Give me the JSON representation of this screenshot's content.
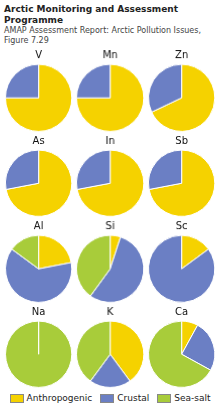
{
  "chart_data": {
    "type": "pie",
    "title": "Arctic Monitoring and Assessment Programme",
    "subtitle": "AMAP Assessment Report: Arctic Pollution Issues, Figure 7.29",
    "categories": [
      "Anthropogenic",
      "Crustal",
      "Sea-salt"
    ],
    "colors": [
      "#F5D200",
      "#6B7FC4",
      "#A8CC3A"
    ],
    "legend": "bottom",
    "series": [
      {
        "name": "V",
        "values": [
          75,
          25,
          0
        ]
      },
      {
        "name": "Mn",
        "values": [
          75,
          25,
          0
        ]
      },
      {
        "name": "Zn",
        "values": [
          68,
          32,
          0
        ]
      },
      {
        "name": "As",
        "values": [
          72,
          28,
          0
        ]
      },
      {
        "name": "In",
        "values": [
          72,
          28,
          0
        ]
      },
      {
        "name": "Sb",
        "values": [
          72,
          28,
          0
        ]
      },
      {
        "name": "Al",
        "values": [
          22,
          63,
          15
        ]
      },
      {
        "name": "Si",
        "values": [
          5,
          55,
          40
        ]
      },
      {
        "name": "Sc",
        "values": [
          15,
          85,
          0
        ]
      },
      {
        "name": "Na",
        "values": [
          0,
          0,
          100
        ]
      },
      {
        "name": "K",
        "values": [
          40,
          20,
          40
        ]
      },
      {
        "name": "Ca",
        "values": [
          8,
          25,
          67
        ]
      }
    ]
  }
}
